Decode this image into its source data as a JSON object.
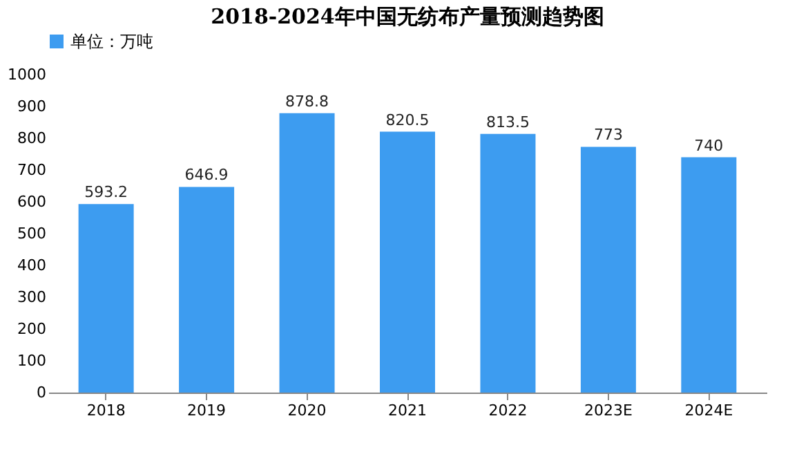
{
  "chart_data": {
    "type": "bar",
    "title": "2018-2024年中国无纺布产量预测趋势图",
    "categories": [
      "2018",
      "2019",
      "2020",
      "2021",
      "2022",
      "2023E",
      "2024E"
    ],
    "series": [
      {
        "name": "单位：万吨",
        "color": "#3d9cf0",
        "values": [
          593.2,
          646.9,
          878.8,
          820.5,
          813.5,
          773,
          740
        ]
      }
    ],
    "ylim": [
      0,
      1000
    ],
    "yticks": [
      0,
      100,
      200,
      300,
      400,
      500,
      600,
      700,
      800,
      900,
      1000
    ],
    "grid": false,
    "legend": "top",
    "data_labels": true
  }
}
